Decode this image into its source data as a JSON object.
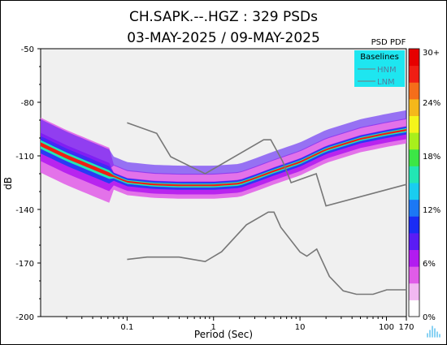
{
  "chart_data": {
    "type": "heatmap",
    "title_line1": "CH.SAPK.--.HGZ : 329 PSDs",
    "title_line2": "03-MAY-2025 / 09-MAY-2025",
    "xlabel": "Period (Sec)",
    "ylabel": "dB",
    "x_scale": "log",
    "xlim": [
      0.01,
      170
    ],
    "ylim": [
      -200,
      -50
    ],
    "x_ticks": [
      {
        "value": 0.1,
        "label": "0.1"
      },
      {
        "value": 1,
        "label": "1"
      },
      {
        "value": 10,
        "label": "10"
      },
      {
        "value": 100,
        "label": "100"
      },
      {
        "value": 170,
        "label": "170"
      }
    ],
    "y_ticks": [
      {
        "value": -50,
        "label": "-50"
      },
      {
        "value": -80,
        "label": "-80"
      },
      {
        "value": -110,
        "label": "-110"
      },
      {
        "value": -140,
        "label": "-140"
      },
      {
        "value": -170,
        "label": "-170"
      },
      {
        "value": -200,
        "label": "-200"
      }
    ],
    "colorbar": {
      "title": "PSD PDF",
      "ticks": [
        {
          "value": 30,
          "label": "30+"
        },
        {
          "value": 24,
          "label": "24%"
        },
        {
          "value": 18,
          "label": "18%"
        },
        {
          "value": 12,
          "label": "12%"
        },
        {
          "value": 6,
          "label": "6%"
        },
        {
          "value": 0,
          "label": "0%"
        }
      ],
      "colors": [
        "#ffffff",
        "#f2b8f2",
        "#e05ce8",
        "#b21cf0",
        "#5a1cf5",
        "#1a2cf5",
        "#1c78f5",
        "#19cdf0",
        "#22e6b4",
        "#3ce646",
        "#a8ef1c",
        "#f5f51a",
        "#f5b81a",
        "#f56e1a",
        "#f01e14",
        "#e60000"
      ]
    },
    "legend": {
      "title": "Baselines",
      "entries": [
        "HNM",
        "LNM"
      ],
      "background": "#1ee6f0",
      "position": "top-right"
    },
    "series": [
      {
        "name": "HNM",
        "color": "#777777",
        "x": [
          0.1,
          0.22,
          0.32,
          0.8,
          3.8,
          4.6,
          6.3,
          7.9,
          15.4,
          20,
          170
        ],
        "y": [
          -91.5,
          -97.4,
          -110.5,
          -120,
          -101,
          -101,
          -113.1,
          -125,
          -120,
          -138,
          -126
        ]
      },
      {
        "name": "LNM",
        "color": "#777777",
        "x": [
          0.1,
          0.17,
          0.4,
          0.8,
          1.24,
          2.4,
          4.3,
          5,
          6,
          10,
          12,
          15.6,
          21.9,
          31.6,
          45,
          70,
          101,
          154,
          170
        ],
        "y": [
          -168,
          -166.7,
          -166.7,
          -169.2,
          -163.7,
          -148.6,
          -141.5,
          -141.5,
          -150,
          -163.8,
          -166.2,
          -162.2,
          -177.5,
          -185.6,
          -187.5,
          -187.5,
          -185,
          -185,
          -185
        ]
      }
    ],
    "mode_curve": {
      "x": [
        0.01,
        0.02,
        0.05,
        0.1,
        0.2,
        0.4,
        1,
        2,
        3,
        5,
        10,
        20,
        50,
        100,
        170
      ],
      "y": [
        -104,
        -111,
        -119,
        -125,
        -126.5,
        -127,
        -127,
        -126,
        -123,
        -119,
        -114,
        -107,
        -101,
        -98,
        -96
      ]
    }
  }
}
